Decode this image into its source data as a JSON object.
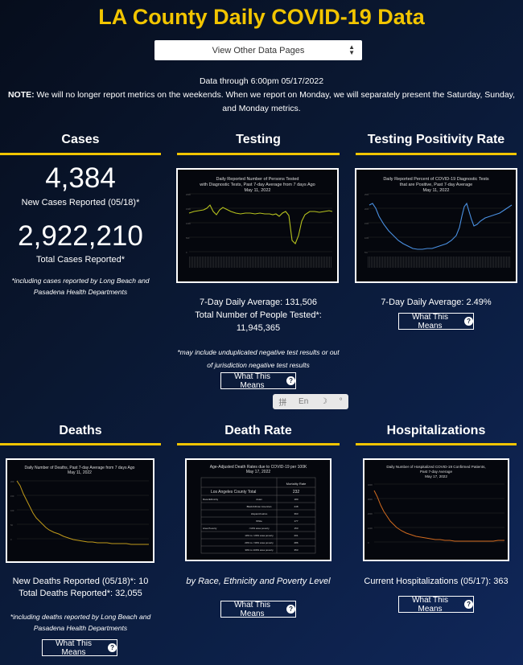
{
  "page": {
    "title": "LA County Daily COVID-19 Data",
    "selector_label": "View Other Data Pages",
    "data_through": "Data through 6:00pm 05/17/2022",
    "note_label": "NOTE:",
    "note_text": " We will no longer report metrics on the weekends. When we report on Monday, we will separately present the Saturday, Sunday, and Monday metrics."
  },
  "cases": {
    "title": "Cases",
    "new_value": "4,384",
    "new_label": "New Cases Reported (05/18)*",
    "total_value": "2,922,210",
    "total_label": "Total Cases Reported*",
    "footnote": "*including cases reported by Long Beach and Pasadena Health Departments"
  },
  "testing": {
    "title": "Testing",
    "chart_title": "Daily Reported Number of Persons Tested with Diagnostic Tests, Past 7-day Average from 7 days Ago",
    "chart_date": "May 11, 2022",
    "avg_line": "7-Day Daily Average: 131,506",
    "total_label": "Total Number of People Tested*:",
    "total_value": "11,945,365",
    "footnote": "*may include unduplicated negative test results or out of jurisdiction negative test results",
    "button": "What This Means"
  },
  "positivity": {
    "title": "Testing Positivity Rate",
    "chart_title": "Daily Reported Percent of COVID-19 Diagnostic Tests that are Positive, Past 7-day Average",
    "chart_date": "May 11, 2022",
    "avg_line": "7-Day Daily Average: 2.49%",
    "button": "What This Means"
  },
  "deaths": {
    "title": "Deaths",
    "chart_title": "Daily Number of Deaths, Past 7-day Average from 7 days Ago",
    "chart_date": "May 11, 2022",
    "new_line": "New Deaths Reported (05/18)*: 10",
    "total_line": "Total Deaths Reported*: 32,055",
    "footnote": "*including deaths reported by Long Beach and Pasadena Health Departments",
    "button": "What This Means"
  },
  "death_rate": {
    "title": "Death Rate",
    "chart_title": "Age-Adjusted Death Rates due to COVID-19 per 100K",
    "chart_date": "May 17, 2022",
    "caption": "by Race, Ethnicity and Poverty Level",
    "button": "What This Means",
    "table_header": "Mortality Rate",
    "table_total_label": "Los Angeles County Total",
    "table_total_value": "232",
    "table_group_1": "Race/Ethnicity",
    "table_group_2": "Area Poverty",
    "table_rows": [
      {
        "label": "Asian",
        "value": "180"
      },
      {
        "label": "Black/African American",
        "value": "248"
      },
      {
        "label": "Hispanic/Latino",
        "value": "363"
      },
      {
        "label": "White",
        "value": "177"
      },
      {
        "label": "<10% area poverty",
        "value": "153"
      },
      {
        "label": "10% to <20% area poverty",
        "value": "201"
      },
      {
        "label": "20% to <30% area poverty",
        "value": "286"
      },
      {
        "label": "30% to 100% area poverty",
        "value": "353"
      }
    ]
  },
  "hospital": {
    "title": "Hospitalizations",
    "chart_title": "Daily Number of Hospitalized COVID-19 Confirmed Patients, Past 7-day Average",
    "chart_date": "May 17, 2022",
    "current_line": "Current Hospitalizations (05/17): 363",
    "button": "What This Means"
  },
  "ime": {
    "item1": "拼",
    "item2": "En",
    "item3": "☽",
    "item4": "°"
  },
  "colors": {
    "accent": "#f2c500",
    "testing_line": "#b6c21e",
    "positivity_line": "#4a90e2",
    "deaths_line": "#c09a1a",
    "hospital_line": "#d16a1f"
  }
}
